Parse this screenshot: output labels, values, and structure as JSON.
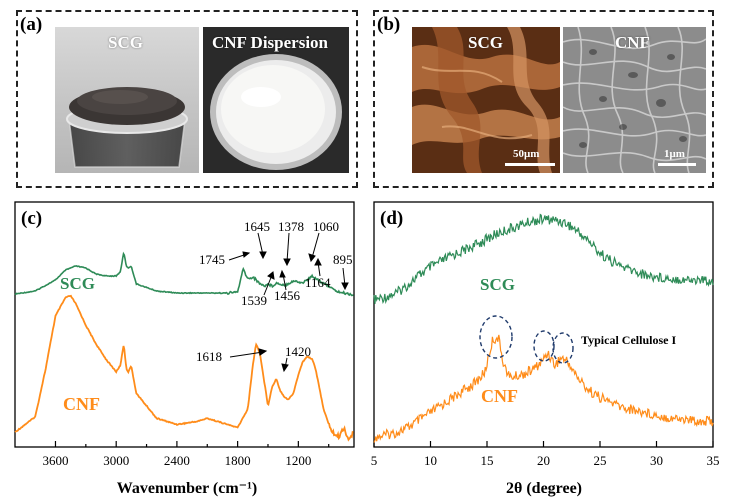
{
  "panels": {
    "a": {
      "label": "(a)",
      "photo_left_label": "SCG",
      "photo_right_label": "CNF Dispersion"
    },
    "b": {
      "label": "(b)",
      "photo_left_label": "SCG",
      "photo_right_label": "CNF",
      "scale_left": "50μm",
      "scale_right": "1μm"
    },
    "c": {
      "label": "(c)",
      "xlabel": "Wavenumber (cm⁻¹)",
      "xticks": [
        "3600",
        "3000",
        "2400",
        "1800",
        "1200"
      ],
      "series_scg": "SCG",
      "series_cnf": "CNF",
      "peaks": {
        "p1745": "1745",
        "p1645": "1645",
        "p1378": "1378",
        "p1060": "1060",
        "p895": "895",
        "p1539": "1539",
        "p1456": "1456",
        "p1164": "1164",
        "p1618": "1618",
        "p1420": "1420"
      }
    },
    "d": {
      "label": "(d)",
      "xlabel": "2θ (degree)",
      "xticks": [
        "5",
        "10",
        "15",
        "20",
        "25",
        "30",
        "35"
      ],
      "series_scg": "SCG",
      "series_cnf": "CNF",
      "annotation": "Typical Cellulose I"
    }
  },
  "colors": {
    "scg": "#2e8b57",
    "cnf": "#ff8c1a"
  },
  "chart_data": [
    {
      "type": "line",
      "xlabel": "Wavenumber (cm⁻¹)",
      "ylabel": "",
      "xlim": [
        4000,
        650
      ],
      "x_reversed": true,
      "series": [
        {
          "name": "SCG",
          "x": [
            4000,
            3800,
            3600,
            3500,
            3400,
            3300,
            3200,
            3100,
            3000,
            2960,
            2925,
            2900,
            2880,
            2853,
            2800,
            2600,
            2400,
            2200,
            2000,
            1900,
            1800,
            1745,
            1700,
            1645,
            1600,
            1539,
            1500,
            1456,
            1420,
            1378,
            1330,
            1250,
            1200,
            1164,
            1100,
            1060,
            1030,
            1000,
            950,
            895,
            850,
            800,
            700,
            650
          ],
          "y": [
            0.02,
            0.05,
            0.16,
            0.26,
            0.3,
            0.28,
            0.22,
            0.2,
            0.2,
            0.24,
            0.44,
            0.3,
            0.28,
            0.3,
            0.12,
            0.05,
            0.03,
            0.03,
            0.03,
            0.03,
            0.04,
            0.27,
            0.17,
            0.19,
            0.14,
            0.1,
            0.12,
            0.1,
            0.13,
            0.12,
            0.11,
            0.15,
            0.14,
            0.13,
            0.17,
            0.2,
            0.18,
            0.16,
            0.12,
            0.1,
            0.06,
            0.04,
            0.02,
            0.01
          ]
        },
        {
          "name": "CNF",
          "x": [
            4000,
            3800,
            3700,
            3600,
            3500,
            3450,
            3400,
            3300,
            3200,
            3100,
            3000,
            2960,
            2925,
            2900,
            2880,
            2853,
            2800,
            2600,
            2400,
            2200,
            2100,
            2000,
            1900,
            1800,
            1700,
            1650,
            1618,
            1580,
            1500,
            1460,
            1430,
            1420,
            1380,
            1340,
            1300,
            1250,
            1200,
            1160,
            1110,
            1060,
            1030,
            1000,
            950,
            900,
            850,
            800,
            750,
            700,
            650
          ],
          "y": [
            0.05,
            0.15,
            0.45,
            0.8,
            0.92,
            0.93,
            0.88,
            0.74,
            0.62,
            0.52,
            0.44,
            0.48,
            0.62,
            0.46,
            0.44,
            0.48,
            0.3,
            0.14,
            0.1,
            0.12,
            0.14,
            0.12,
            0.1,
            0.08,
            0.2,
            0.48,
            0.62,
            0.56,
            0.22,
            0.34,
            0.38,
            0.4,
            0.32,
            0.28,
            0.26,
            0.3,
            0.42,
            0.5,
            0.54,
            0.52,
            0.46,
            0.36,
            0.2,
            0.1,
            0.04,
            0.02,
            0.08,
            0.0,
            0.05
          ]
        }
      ]
    },
    {
      "type": "line",
      "xlabel": "2θ (degree)",
      "ylabel": "",
      "xlim": [
        5,
        35
      ],
      "series": [
        {
          "name": "SCG",
          "x": [
            5,
            6,
            7,
            8,
            9,
            10,
            11,
            12,
            13,
            14,
            15,
            16,
            17,
            18,
            19,
            20,
            21,
            22,
            23,
            24,
            25,
            26,
            27,
            28,
            29,
            30,
            31,
            32,
            33,
            34,
            35
          ],
          "y": [
            0.05,
            0.08,
            0.12,
            0.2,
            0.3,
            0.38,
            0.44,
            0.5,
            0.55,
            0.6,
            0.66,
            0.72,
            0.76,
            0.8,
            0.84,
            0.86,
            0.85,
            0.82,
            0.74,
            0.64,
            0.52,
            0.44,
            0.38,
            0.34,
            0.3,
            0.28,
            0.27,
            0.26,
            0.25,
            0.25,
            0.24
          ]
        },
        {
          "name": "CNF",
          "x": [
            5,
            6,
            7,
            8,
            9,
            10,
            11,
            12,
            13,
            14,
            14.8,
            15.5,
            16.0,
            16.5,
            17,
            18,
            19,
            19.8,
            20.4,
            21,
            21.6,
            22.2,
            23,
            24,
            25,
            26,
            27,
            28,
            29,
            30,
            31,
            32,
            33,
            34,
            35
          ],
          "y": [
            0.02,
            0.04,
            0.06,
            0.1,
            0.16,
            0.22,
            0.28,
            0.34,
            0.4,
            0.46,
            0.54,
            0.8,
            0.82,
            0.6,
            0.5,
            0.52,
            0.56,
            0.62,
            0.7,
            0.6,
            0.66,
            0.62,
            0.5,
            0.4,
            0.34,
            0.3,
            0.26,
            0.24,
            0.22,
            0.2,
            0.18,
            0.17,
            0.16,
            0.15,
            0.15
          ]
        }
      ]
    }
  ]
}
